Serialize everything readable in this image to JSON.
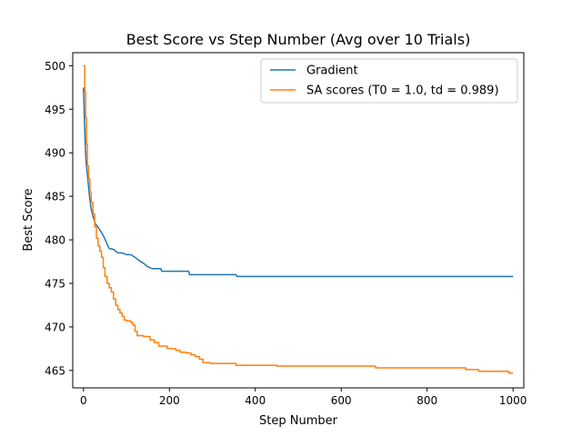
{
  "chart_data": {
    "type": "line",
    "title": "Best Score vs Step Number (Avg over 10 Trials)",
    "xlabel": "Step Number",
    "ylabel": "Best Score",
    "xlim": [
      -25,
      1025
    ],
    "ylim": [
      463.0,
      501.5
    ],
    "xticks": [
      0,
      200,
      400,
      600,
      800,
      1000
    ],
    "yticks": [
      465,
      470,
      475,
      480,
      485,
      490,
      495,
      500
    ],
    "grid": false,
    "legend_position": "top-right",
    "series": [
      {
        "name": "Gradient",
        "color": "#1f77b4",
        "step": false,
        "points": [
          [
            0,
            497.5
          ],
          [
            2,
            494
          ],
          [
            4,
            491
          ],
          [
            6,
            489
          ],
          [
            8,
            488
          ],
          [
            10,
            487
          ],
          [
            12,
            486
          ],
          [
            14,
            485
          ],
          [
            16,
            484.2
          ],
          [
            18,
            483.5
          ],
          [
            20,
            483.1
          ],
          [
            22,
            482.7
          ],
          [
            25,
            482.3
          ],
          [
            28,
            481.8
          ],
          [
            32,
            481.6
          ],
          [
            36,
            481.3
          ],
          [
            40,
            481.0
          ],
          [
            45,
            480.6
          ],
          [
            50,
            480.1
          ],
          [
            55,
            479.5
          ],
          [
            60,
            479.0
          ],
          [
            70,
            478.9
          ],
          [
            80,
            478.5
          ],
          [
            90,
            478.5
          ],
          [
            100,
            478.3
          ],
          [
            110,
            478.3
          ],
          [
            120,
            478.0
          ],
          [
            130,
            477.6
          ],
          [
            140,
            477.3
          ],
          [
            150,
            476.9
          ],
          [
            160,
            476.7
          ],
          [
            180,
            476.7
          ],
          [
            182,
            476.4
          ],
          [
            245,
            476.4
          ],
          [
            247,
            476.0
          ],
          [
            355,
            476.0
          ],
          [
            357,
            475.8
          ],
          [
            1000,
            475.8
          ]
        ]
      },
      {
        "name": "SA scores (T0 = 1.0, td = 0.989)",
        "color": "#ff7f0e",
        "step": true,
        "points": [
          [
            0,
            500.0
          ],
          [
            3,
            497.0
          ],
          [
            5,
            494.0
          ],
          [
            7,
            491.0
          ],
          [
            9,
            488.5
          ],
          [
            12,
            487.0
          ],
          [
            15,
            485.5
          ],
          [
            18,
            484.3
          ],
          [
            22,
            483.0
          ],
          [
            26,
            481.5
          ],
          [
            30,
            480.2
          ],
          [
            34,
            479.3
          ],
          [
            38,
            478.7
          ],
          [
            42,
            478.0
          ],
          [
            46,
            476.8
          ],
          [
            50,
            475.8
          ],
          [
            55,
            475.0
          ],
          [
            60,
            474.5
          ],
          [
            65,
            474.0
          ],
          [
            70,
            473.2
          ],
          [
            75,
            472.5
          ],
          [
            80,
            472.0
          ],
          [
            85,
            471.6
          ],
          [
            90,
            471.2
          ],
          [
            95,
            470.8
          ],
          [
            100,
            470.7
          ],
          [
            110,
            470.5
          ],
          [
            115,
            470.2
          ],
          [
            120,
            469.5
          ],
          [
            125,
            469.0
          ],
          [
            140,
            468.9
          ],
          [
            155,
            468.5
          ],
          [
            165,
            468.2
          ],
          [
            175,
            467.8
          ],
          [
            195,
            467.5
          ],
          [
            215,
            467.3
          ],
          [
            225,
            467.1
          ],
          [
            240,
            467.0
          ],
          [
            250,
            466.8
          ],
          [
            260,
            466.6
          ],
          [
            270,
            466.3
          ],
          [
            278,
            465.9
          ],
          [
            295,
            465.8
          ],
          [
            355,
            465.6
          ],
          [
            450,
            465.5
          ],
          [
            680,
            465.3
          ],
          [
            890,
            465.1
          ],
          [
            920,
            464.9
          ],
          [
            990,
            464.7
          ],
          [
            1000,
            464.7
          ]
        ]
      }
    ]
  }
}
